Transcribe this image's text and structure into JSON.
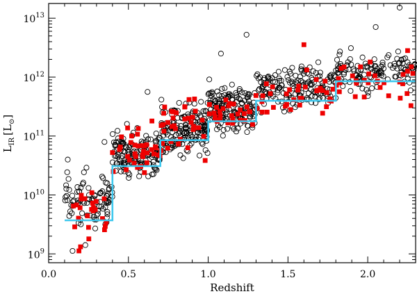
{
  "chart_data": {
    "type": "scatter",
    "title": "",
    "xlabel": "Redshift",
    "ylabel_main": "L",
    "ylabel_sub": "IR",
    "ylabel_unit_open": "[L",
    "ylabel_unit_sun": "⊙",
    "ylabel_unit_close": "]",
    "xlim": [
      0.0,
      2.3
    ],
    "ylim_log10": [
      8.85,
      13.25
    ],
    "x_ticks": [
      {
        "value": 0.0,
        "label": "0.0"
      },
      {
        "value": 0.5,
        "label": "0.5"
      },
      {
        "value": 1.0,
        "label": "1.0"
      },
      {
        "value": 1.5,
        "label": "1.5"
      },
      {
        "value": 2.0,
        "label": "2.0"
      }
    ],
    "y_ticks": [
      {
        "log10": 9,
        "base": "10",
        "exp": "9"
      },
      {
        "log10": 10,
        "base": "10",
        "exp": "10"
      },
      {
        "log10": 11,
        "base": "10",
        "exp": "11"
      },
      {
        "log10": 12,
        "base": "10",
        "exp": "12"
      },
      {
        "log10": 13,
        "base": "10",
        "exp": "13"
      }
    ],
    "colors": {
      "open_circles": "#000000",
      "red_squares": "#ee0000",
      "threshold_line": "#3ec8ee",
      "axes": "#000000"
    },
    "series": [
      {
        "name": "open circles",
        "marker": "open-circle",
        "clusters": [
          {
            "x": [
              0.1,
              0.4
            ],
            "y_lo": 9.3,
            "y_hi": 10.6,
            "count": 90
          },
          {
            "x": [
              0.4,
              0.7
            ],
            "y_lo": 10.1,
            "y_hi": 11.3,
            "count": 150
          },
          {
            "x": [
              0.7,
              1.0
            ],
            "y_lo": 10.5,
            "y_hi": 11.7,
            "count": 170
          },
          {
            "x": [
              1.0,
              1.3
            ],
            "y_lo": 10.9,
            "y_hi": 12.0,
            "count": 160
          },
          {
            "x": [
              1.3,
              1.8
            ],
            "y_lo": 11.3,
            "y_hi": 12.35,
            "count": 170
          },
          {
            "x": [
              1.8,
              2.3
            ],
            "y_lo": 11.6,
            "y_hi": 12.55,
            "count": 130
          }
        ],
        "points": [
          [
            2.2,
            13.18
          ],
          [
            1.24,
            12.72
          ],
          [
            2.05,
            12.85
          ],
          [
            0.62,
            11.75
          ],
          [
            1.08,
            12.4
          ],
          [
            0.35,
            10.9
          ],
          [
            0.12,
            10.6
          ],
          [
            0.23,
            9.15
          ],
          [
            0.15,
            9.05
          ]
        ]
      },
      {
        "name": "red squares",
        "marker": "filled-square",
        "clusters": [
          {
            "x": [
              0.12,
              0.4
            ],
            "y_lo": 9.05,
            "y_hi": 10.3,
            "count": 22
          },
          {
            "x": [
              0.4,
              0.7
            ],
            "y_lo": 10.0,
            "y_hi": 11.4,
            "count": 35
          },
          {
            "x": [
              0.7,
              1.0
            ],
            "y_lo": 10.5,
            "y_hi": 11.8,
            "count": 35
          },
          {
            "x": [
              1.0,
              1.3
            ],
            "y_lo": 10.9,
            "y_hi": 12.0,
            "count": 30
          },
          {
            "x": [
              1.3,
              1.8
            ],
            "y_lo": 11.1,
            "y_hi": 12.3,
            "count": 35
          },
          {
            "x": [
              1.8,
              2.3
            ],
            "y_lo": 11.4,
            "y_hi": 12.4,
            "count": 30
          }
        ],
        "points": [
          [
            0.19,
            9.05
          ],
          [
            0.2,
            9.12
          ],
          [
            0.25,
            9.45
          ],
          [
            0.4,
            10.72
          ],
          [
            0.88,
            11.62
          ],
          [
            1.6,
            12.55
          ],
          [
            2.25,
            12.45
          ]
        ]
      }
    ],
    "threshold_steps": [
      {
        "x0": 0.1,
        "x1": 0.4,
        "log10": 9.57
      },
      {
        "x0": 0.4,
        "x1": 0.7,
        "log10": 10.49
      },
      {
        "x0": 0.7,
        "x1": 1.0,
        "log10": 10.93
      },
      {
        "x0": 1.0,
        "x1": 1.3,
        "log10": 11.25
      },
      {
        "x0": 1.3,
        "x1": 1.8,
        "log10": 11.6
      },
      {
        "x0": 1.8,
        "x1": 2.3,
        "log10": 11.93
      }
    ]
  }
}
